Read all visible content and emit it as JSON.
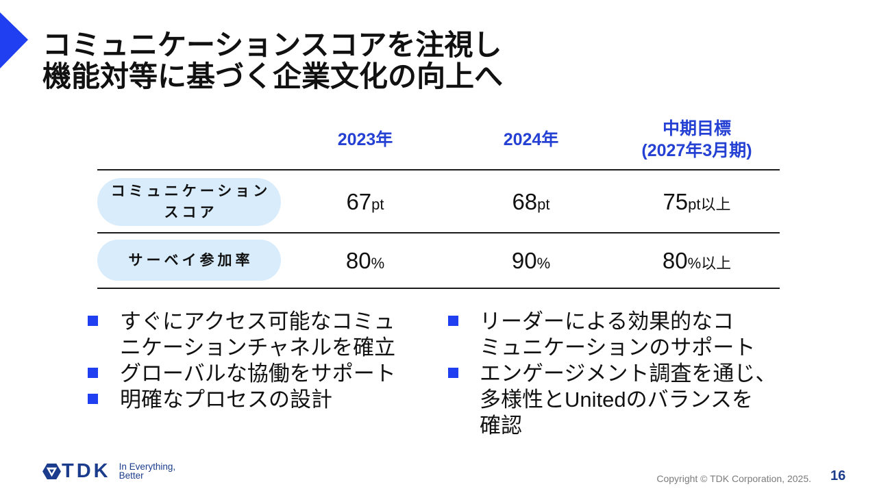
{
  "slide": {
    "title_lines": [
      "コミュニケーションスコアを注視し",
      "機能対等に基づく企業文化の向上へ"
    ],
    "page_number": "16",
    "copyright": "Copyright © TDK Corporation, 2025."
  },
  "table": {
    "header": {
      "col_2023": "2023年",
      "col_2024": "2024年",
      "col_target_lines": [
        "中期目標",
        "(2027年3月期)"
      ]
    },
    "rows": [
      {
        "label_lines": [
          "コミュニケーション",
          "スコア"
        ],
        "values": [
          {
            "number": "67",
            "unit": "pt"
          },
          {
            "number": "68",
            "unit": "pt"
          },
          {
            "number": "75",
            "unit": "pt以上"
          }
        ]
      },
      {
        "label_lines": [
          "サーベイ参加率"
        ],
        "values": [
          {
            "number": "80",
            "unit": "%"
          },
          {
            "number": "90",
            "unit": "%"
          },
          {
            "number": "80",
            "unit": "%以上"
          }
        ]
      }
    ]
  },
  "bullets": {
    "left": [
      {
        "lines": [
          "すぐにアクセス可能なコミュ",
          "ニケーションチャネルを確立"
        ]
      },
      {
        "lines": [
          "グローバルな協働をサポート"
        ]
      },
      {
        "lines": [
          "明確なプロセスの設計"
        ]
      }
    ],
    "right": [
      {
        "lines": [
          "リーダーによる効果的なコ",
          "ミュニケーションのサポート"
        ]
      },
      {
        "lines": [
          "エンゲージメント調査を通じ、",
          "多様性とUnitedのバランスを",
          "確認"
        ]
      }
    ]
  },
  "logo": {
    "wordmark": "TDK",
    "tagline_lines": [
      "In Everything,",
      "Better"
    ]
  },
  "icons": {
    "title_marker": "triangle-right-icon",
    "bullet": "square-bullet-icon",
    "logo_emblem": "tdk-emblem-icon"
  },
  "colors": {
    "accent_blue": "#1f3ff0",
    "header_blue": "#2541d4",
    "pill_background": "#d8ecfb",
    "logo_navy": "#1b3c8c",
    "text": "#111111",
    "rule": "#1a1a1a",
    "copyright_gray": "#7b7b7b"
  }
}
